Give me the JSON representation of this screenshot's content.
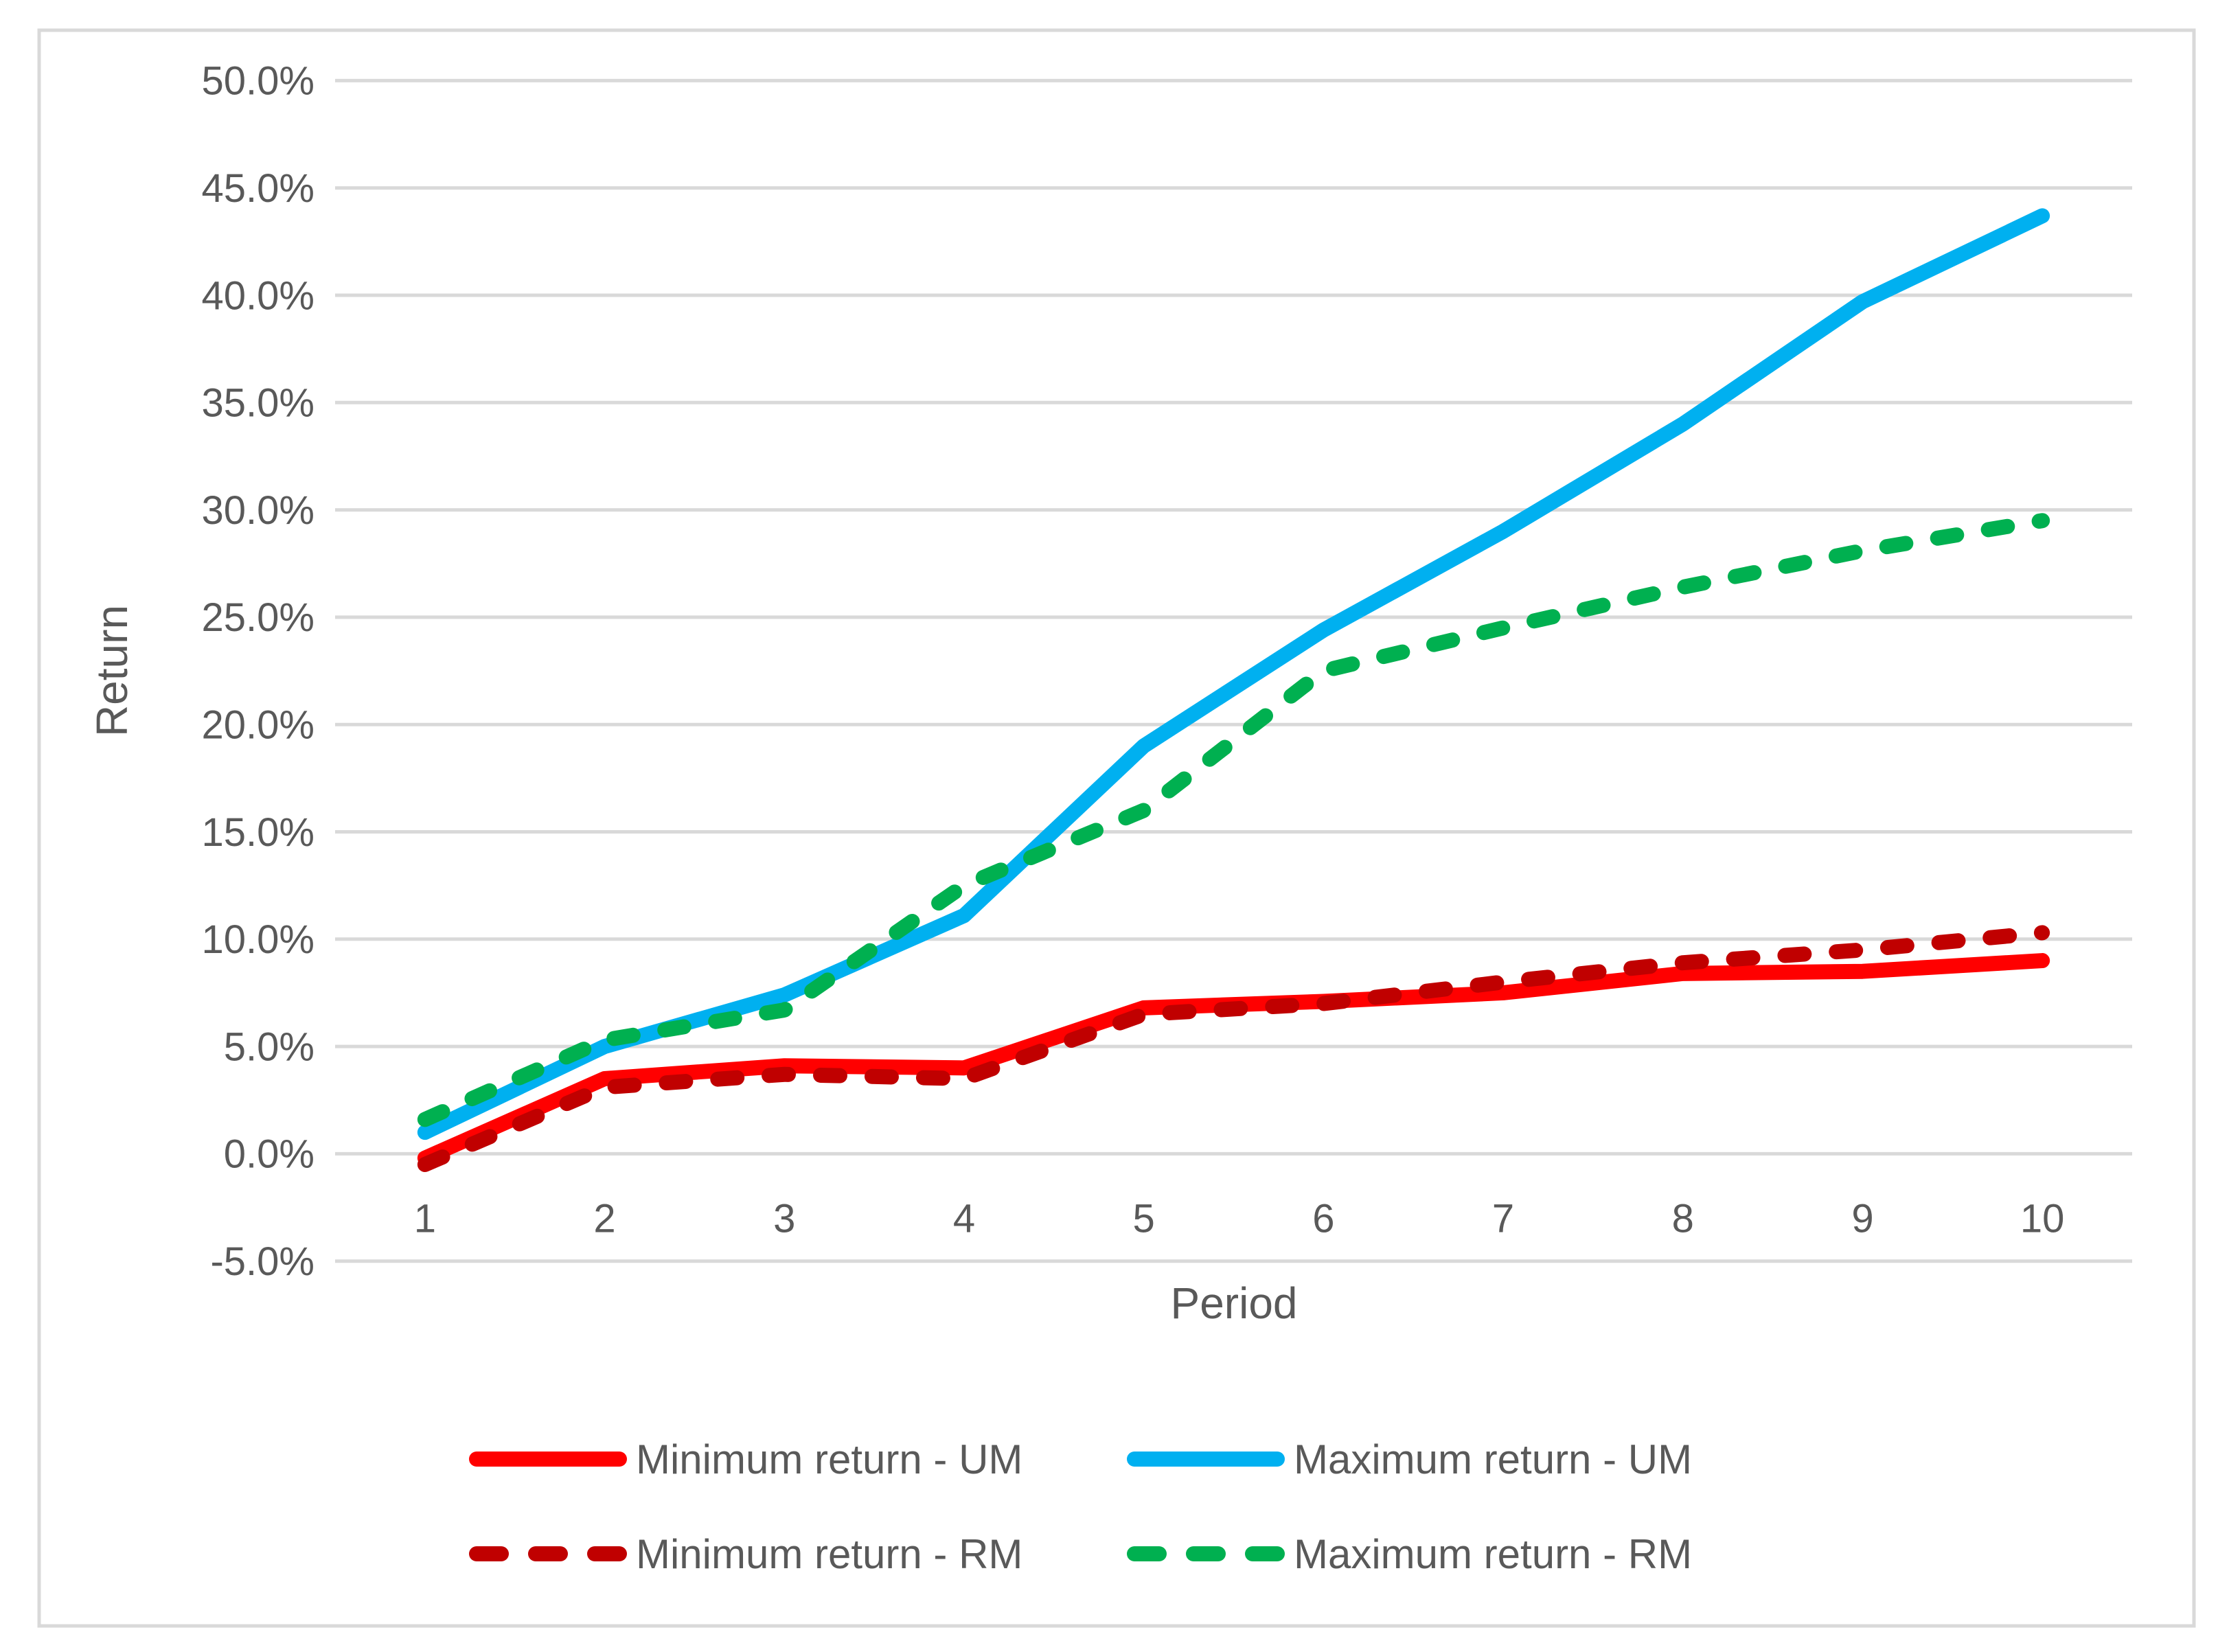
{
  "chart_data": {
    "type": "line",
    "title": "",
    "xlabel": "Period",
    "ylabel": "Return",
    "categories": [
      1,
      2,
      3,
      4,
      5,
      6,
      7,
      8,
      9,
      10
    ],
    "series": [
      {
        "name": "Minimum return - UM",
        "color": "#FF0000",
        "style": "solid",
        "values": [
          -0.2,
          3.5,
          4.1,
          4.0,
          6.8,
          7.1,
          7.5,
          8.4,
          8.5,
          9.0
        ]
      },
      {
        "name": "Maximum return - UM",
        "color": "#00B0F0",
        "style": "solid",
        "values": [
          1.0,
          5.0,
          7.4,
          11.1,
          19.0,
          24.4,
          29.0,
          34.0,
          39.7,
          43.7
        ]
      },
      {
        "name": "Minimum return - RM",
        "color": "#C00000",
        "style": "dashed",
        "values": [
          -0.5,
          3.1,
          3.7,
          3.5,
          6.5,
          7.0,
          8.0,
          8.9,
          9.5,
          10.3
        ]
      },
      {
        "name": "Maximum return - RM",
        "color": "#00B050",
        "style": "dashed",
        "values": [
          1.6,
          5.3,
          6.7,
          12.5,
          16.0,
          22.5,
          24.5,
          26.4,
          28.1,
          29.5
        ]
      }
    ],
    "ylim": [
      -5,
      50
    ],
    "ytick_step": 5,
    "ytick_labels": [
      "50.0%",
      "45.0%",
      "40.0%",
      "35.0%",
      "30.0%",
      "25.0%",
      "20.0%",
      "15.0%",
      "10.0%",
      "5.0%",
      "0.0%",
      "-5.0%"
    ],
    "xtick_labels": [
      "1",
      "2",
      "3",
      "4",
      "5",
      "6",
      "7",
      "8",
      "9",
      "10"
    ],
    "grid": true,
    "legend_position": "bottom",
    "legend_rows": [
      [
        "Minimum return - UM",
        "Maximum return - UM"
      ],
      [
        "Minimum return - RM",
        "Maximum return - RM"
      ]
    ]
  },
  "colors": {
    "background": "#FFFFFF",
    "chart_border": "#D9D9D9",
    "gridline": "#D9D9D9",
    "axis_text": "#595959",
    "min_um": "#FF0000",
    "max_um": "#00B0F0",
    "min_rm": "#C00000",
    "max_rm": "#00B050"
  }
}
